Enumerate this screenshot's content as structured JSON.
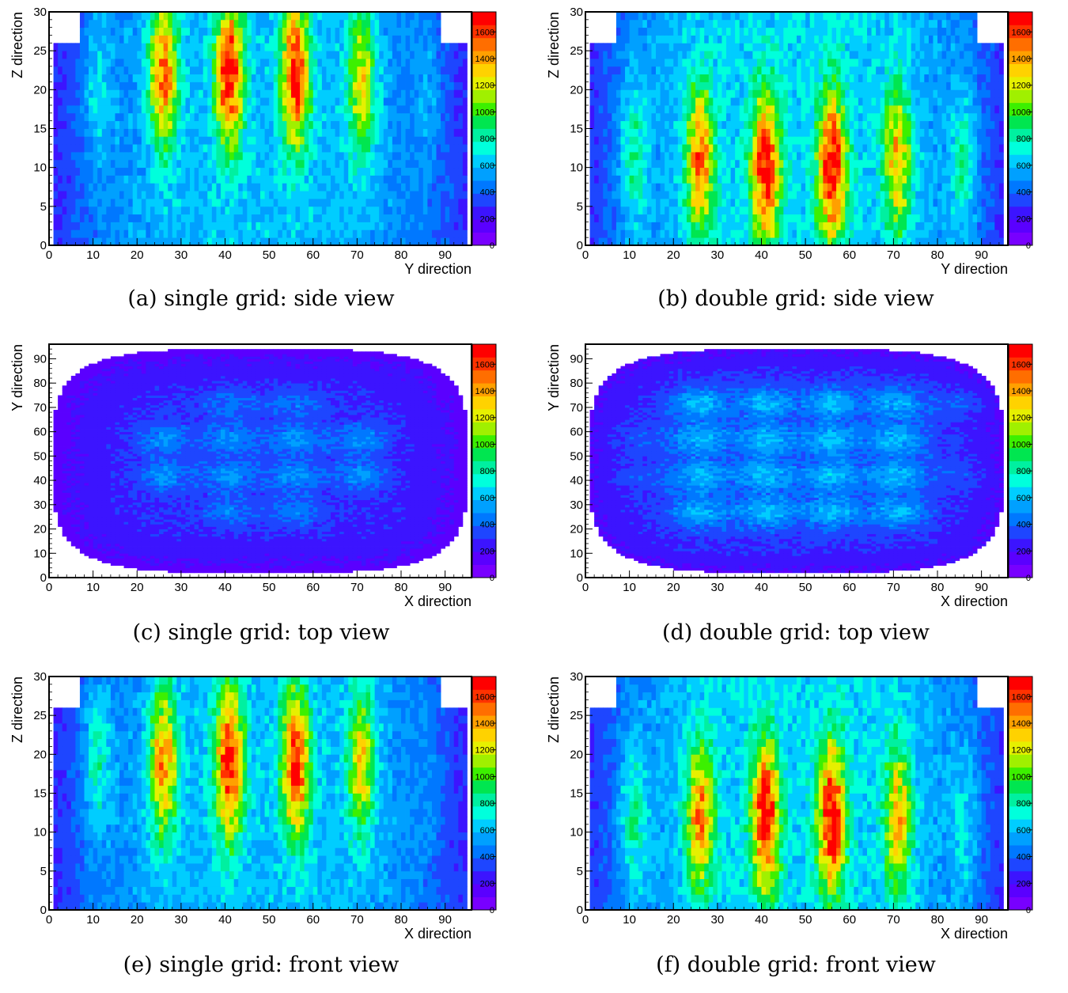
{
  "figure_title": "",
  "colorbar_max": 1750,
  "colorbar_ticks": [
    "0",
    "200",
    "400",
    "600",
    "800",
    "1000",
    "1200",
    "1400",
    "1600"
  ],
  "colors": {
    "low": "#7800ff",
    "high": "#ff0000",
    "frame": "#000000"
  },
  "chart_data": [
    {
      "id": "a",
      "type": "heatmap",
      "caption": "(a) single grid: side view",
      "xlabel": "Y direction",
      "ylabel": "Z direction",
      "xlim": [
        0,
        96
      ],
      "ylim": [
        0,
        30
      ],
      "xticks": [
        "0",
        "10",
        "20",
        "30",
        "40",
        "50",
        "60",
        "70",
        "80",
        "90"
      ],
      "yticks": [
        "0",
        "5",
        "10",
        "15",
        "20",
        "25",
        "30"
      ],
      "zlim": [
        0,
        1750
      ],
      "orientation": "vertical",
      "peaks": [
        {
          "x": 11,
          "y": 20,
          "value": 850
        },
        {
          "x": 26,
          "y": 22,
          "value": 1550
        },
        {
          "x": 41,
          "y": 22,
          "value": 1750
        },
        {
          "x": 56,
          "y": 22,
          "value": 1700
        },
        {
          "x": 71,
          "y": 21,
          "value": 1300
        },
        {
          "x": 86,
          "y": 19,
          "value": 750
        }
      ],
      "background": 600
    },
    {
      "id": "b",
      "type": "heatmap",
      "caption": "(b) double grid: side view",
      "xlabel": "Y direction",
      "ylabel": "Z direction",
      "xlim": [
        0,
        96
      ],
      "ylim": [
        0,
        30
      ],
      "xticks": [
        "0",
        "10",
        "20",
        "30",
        "40",
        "50",
        "60",
        "70",
        "80",
        "90"
      ],
      "yticks": [
        "0",
        "5",
        "10",
        "15",
        "20",
        "25",
        "30"
      ],
      "zlim": [
        0,
        1750
      ],
      "orientation": "vertical",
      "peaks": [
        {
          "x": 11,
          "y": 12,
          "value": 1000
        },
        {
          "x": 26,
          "y": 11,
          "value": 1550
        },
        {
          "x": 41,
          "y": 10,
          "value": 1750
        },
        {
          "x": 56,
          "y": 10,
          "value": 1750
        },
        {
          "x": 71,
          "y": 11,
          "value": 1400
        },
        {
          "x": 86,
          "y": 11,
          "value": 1000
        }
      ],
      "background": 650
    },
    {
      "id": "c",
      "type": "heatmap",
      "caption": "(c) single grid: top view",
      "xlabel": "X direction",
      "ylabel": "Y direction",
      "xlim": [
        0,
        96
      ],
      "ylim": [
        0,
        96
      ],
      "xticks": [
        "0",
        "10",
        "20",
        "30",
        "40",
        "50",
        "60",
        "70",
        "80",
        "90"
      ],
      "yticks": [
        "0",
        "10",
        "20",
        "30",
        "40",
        "50",
        "60",
        "70",
        "80",
        "90"
      ],
      "zlim": [
        0,
        1750
      ],
      "orientation": "grid",
      "peaks": [
        {
          "x": 26,
          "y": 57,
          "value": 500
        },
        {
          "x": 41,
          "y": 57,
          "value": 500
        },
        {
          "x": 56,
          "y": 57,
          "value": 500
        },
        {
          "x": 71,
          "y": 57,
          "value": 500
        },
        {
          "x": 26,
          "y": 42,
          "value": 500
        },
        {
          "x": 41,
          "y": 42,
          "value": 500
        },
        {
          "x": 56,
          "y": 42,
          "value": 500
        },
        {
          "x": 71,
          "y": 42,
          "value": 500
        },
        {
          "x": 41,
          "y": 72,
          "value": 450
        },
        {
          "x": 56,
          "y": 72,
          "value": 450
        },
        {
          "x": 41,
          "y": 27,
          "value": 450
        },
        {
          "x": 56,
          "y": 27,
          "value": 450
        }
      ],
      "background": 300
    },
    {
      "id": "d",
      "type": "heatmap",
      "caption": "(d) double grid: top view",
      "xlabel": "X direction",
      "ylabel": "Y direction",
      "xlim": [
        0,
        96
      ],
      "ylim": [
        0,
        96
      ],
      "xticks": [
        "0",
        "10",
        "20",
        "30",
        "40",
        "50",
        "60",
        "70",
        "80",
        "90"
      ],
      "yticks": [
        "0",
        "10",
        "20",
        "30",
        "40",
        "50",
        "60",
        "70",
        "80",
        "90"
      ],
      "zlim": [
        0,
        1750
      ],
      "orientation": "grid",
      "peaks": [
        {
          "x": 26,
          "y": 72,
          "value": 600
        },
        {
          "x": 41,
          "y": 72,
          "value": 600
        },
        {
          "x": 56,
          "y": 72,
          "value": 600
        },
        {
          "x": 71,
          "y": 72,
          "value": 600
        },
        {
          "x": 26,
          "y": 57,
          "value": 600
        },
        {
          "x": 41,
          "y": 57,
          "value": 600
        },
        {
          "x": 56,
          "y": 57,
          "value": 600
        },
        {
          "x": 71,
          "y": 57,
          "value": 600
        },
        {
          "x": 26,
          "y": 42,
          "value": 600
        },
        {
          "x": 41,
          "y": 42,
          "value": 600
        },
        {
          "x": 56,
          "y": 42,
          "value": 600
        },
        {
          "x": 71,
          "y": 42,
          "value": 600
        },
        {
          "x": 26,
          "y": 27,
          "value": 600
        },
        {
          "x": 41,
          "y": 27,
          "value": 600
        },
        {
          "x": 56,
          "y": 27,
          "value": 600
        },
        {
          "x": 71,
          "y": 27,
          "value": 600
        },
        {
          "x": 86,
          "y": 72,
          "value": 450
        },
        {
          "x": 11,
          "y": 57,
          "value": 420
        },
        {
          "x": 11,
          "y": 42,
          "value": 420
        },
        {
          "x": 86,
          "y": 42,
          "value": 420
        }
      ],
      "background": 350
    },
    {
      "id": "e",
      "type": "heatmap",
      "caption": "(e) single grid: front view",
      "xlabel": "X direction",
      "ylabel": "Z direction",
      "xlim": [
        0,
        96
      ],
      "ylim": [
        0,
        30
      ],
      "xticks": [
        "0",
        "10",
        "20",
        "30",
        "40",
        "50",
        "60",
        "70",
        "80",
        "90"
      ],
      "yticks": [
        "0",
        "5",
        "10",
        "15",
        "20",
        "25",
        "30"
      ],
      "zlim": [
        0,
        1750
      ],
      "orientation": "vertical",
      "peaks": [
        {
          "x": 11,
          "y": 19,
          "value": 950
        },
        {
          "x": 26,
          "y": 19,
          "value": 1500
        },
        {
          "x": 41,
          "y": 19,
          "value": 1750
        },
        {
          "x": 56,
          "y": 19,
          "value": 1700
        },
        {
          "x": 71,
          "y": 19,
          "value": 1300
        },
        {
          "x": 86,
          "y": 17,
          "value": 650
        }
      ],
      "background": 600
    },
    {
      "id": "f",
      "type": "heatmap",
      "caption": "(f) double grid: front view",
      "xlabel": "X direction",
      "ylabel": "Z direction",
      "xlim": [
        0,
        96
      ],
      "ylim": [
        0,
        30
      ],
      "xticks": [
        "0",
        "10",
        "20",
        "30",
        "40",
        "50",
        "60",
        "70",
        "80",
        "90"
      ],
      "yticks": [
        "0",
        "5",
        "10",
        "15",
        "20",
        "25",
        "30"
      ],
      "zlim": [
        0,
        1750
      ],
      "orientation": "vertical",
      "peaks": [
        {
          "x": 11,
          "y": 12,
          "value": 1000
        },
        {
          "x": 26,
          "y": 12,
          "value": 1500
        },
        {
          "x": 41,
          "y": 12,
          "value": 1750
        },
        {
          "x": 56,
          "y": 12,
          "value": 1750
        },
        {
          "x": 71,
          "y": 12,
          "value": 1400
        },
        {
          "x": 86,
          "y": 11,
          "value": 900
        }
      ],
      "background": 650
    }
  ]
}
